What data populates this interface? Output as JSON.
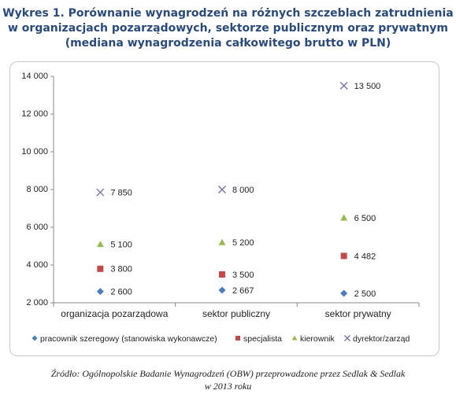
{
  "title": {
    "line1": "Wykres 1. Porównanie wynagrodzeń  na różnych szczeblach zatrudnienia",
    "line2": "w organizacjach pozarządowych, sektorze publicznym oraz prywatnym",
    "line3": "(mediana wynagrodzenia całkowitego brutto w PLN)"
  },
  "source": {
    "line1": "Źródło: Ogólnopolskie Badanie Wynagrodzeń (OBW) przeprowadzone  przez Sedlak & Sedlak",
    "line2": "w 2013 roku"
  },
  "colors": {
    "pracownik": "#4a7ebb",
    "specjalista": "#be4b48",
    "kierownik": "#98b954",
    "dyrektor": "#7e6aa3",
    "axis": "#888888",
    "text": "#222222"
  },
  "chart_data": {
    "type": "scatter",
    "title": "",
    "xlabel": "",
    "ylabel": "",
    "categories": [
      "organizacja pozarządowa",
      "sektor publiczny",
      "sektor prywatny"
    ],
    "ylim": [
      2000,
      14000
    ],
    "yticks": [
      2000,
      4000,
      6000,
      8000,
      10000,
      12000,
      14000
    ],
    "ytick_labels": [
      "2 000",
      "4 000",
      "6 000",
      "8 000",
      "10 000",
      "12 000",
      "14 000"
    ],
    "grid": false,
    "legend_position": "bottom",
    "series": [
      {
        "name": "pracownik szeregowy (stanowiska wykonawcze)",
        "marker": "diamond",
        "color_key": "pracownik",
        "values": [
          2600,
          2667,
          2500
        ],
        "labels": [
          "2 600",
          "2 667",
          "2 500"
        ]
      },
      {
        "name": "specjalista",
        "marker": "square",
        "color_key": "specjalista",
        "values": [
          3800,
          3500,
          4482
        ],
        "labels": [
          "3 800",
          "3 500",
          "4 482"
        ]
      },
      {
        "name": "kierownik",
        "marker": "triangle",
        "color_key": "kierownik",
        "values": [
          5100,
          5200,
          6500
        ],
        "labels": [
          "5 100",
          "5 200",
          "6 500"
        ]
      },
      {
        "name": "dyrektor/zarząd",
        "marker": "x",
        "color_key": "dyrektor",
        "values": [
          7850,
          8000,
          13500
        ],
        "labels": [
          "7 850",
          "8 000",
          "13 500"
        ]
      }
    ]
  }
}
